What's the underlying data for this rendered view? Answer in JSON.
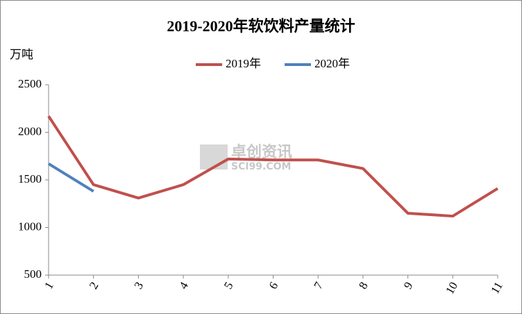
{
  "chart_data": {
    "type": "line",
    "title": "2019-2020年软饮料产量统计",
    "y_label": "万吨",
    "watermark": [
      "卓创资讯",
      "SCI99.COM"
    ],
    "categories": [
      "1",
      "2",
      "3",
      "4",
      "5",
      "6",
      "7",
      "8",
      "9",
      "10",
      "11"
    ],
    "series": [
      {
        "name": "2019年",
        "color": "#c0504d",
        "values": [
          2170,
          1450,
          1310,
          1450,
          1720,
          1710,
          1710,
          1620,
          1150,
          1120,
          1410
        ]
      },
      {
        "name": "2020年",
        "color": "#4f81bd",
        "values": [
          1670,
          1380,
          null,
          null,
          null,
          null,
          null,
          null,
          null,
          null,
          null
        ]
      }
    ],
    "ylim": [
      500,
      2500
    ],
    "yticks": [
      500,
      1000,
      1500,
      2000,
      2500
    ],
    "grid": false,
    "legend": "top"
  }
}
